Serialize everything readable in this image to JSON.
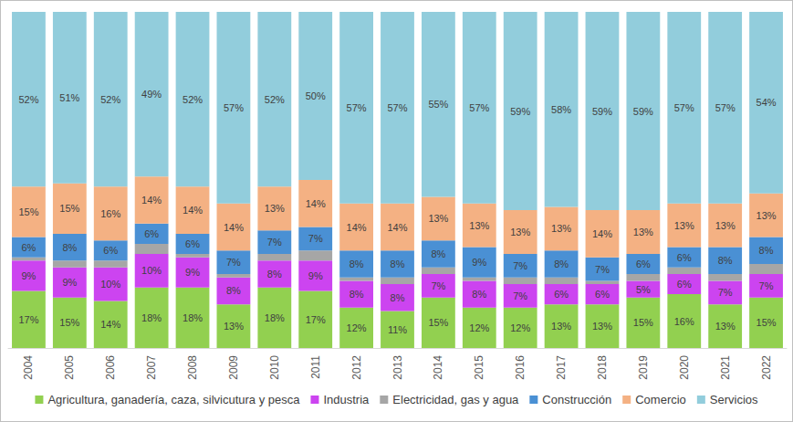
{
  "chart_data": {
    "type": "bar",
    "stacked": true,
    "data_labels": true,
    "tick_labels": "x",
    "grid": false,
    "legend": "bottom",
    "categories": [
      "2004",
      "2005",
      "2006",
      "2007",
      "2008",
      "2009",
      "2010",
      "2011",
      "2012",
      "2013",
      "2014",
      "2015",
      "2016",
      "2017",
      "2018",
      "2019",
      "2020",
      "2021",
      "2022"
    ],
    "ylim": [
      0,
      100
    ],
    "series": [
      {
        "name": "Agricultura, ganadería, caza, silvicutura y pesca",
        "color": "#92d050",
        "values": [
          17,
          15,
          14,
          18,
          18,
          13,
          18,
          17,
          12,
          11,
          15,
          12,
          12,
          13,
          13,
          15,
          16,
          13,
          15
        ],
        "value_labels": [
          "17%",
          "15%",
          "14%",
          "18%",
          "18%",
          "13%",
          "18%",
          "17%",
          "12%",
          "11%",
          "15%",
          "12%",
          "12%",
          "13%",
          "13%",
          "15%",
          "16%",
          "13%",
          "15%"
        ]
      },
      {
        "name": "Industria",
        "color": "#cc44f0",
        "values": [
          9,
          9,
          10,
          10,
          9,
          8,
          8,
          9,
          8,
          8,
          7,
          8,
          7,
          6,
          6,
          5,
          6,
          7,
          7
        ],
        "value_labels": [
          "9%",
          "9%",
          "10%",
          "10%",
          "9%",
          "8%",
          "8%",
          "9%",
          "8%",
          "8%",
          "7%",
          "8%",
          "7%",
          "6%",
          "6%",
          "5%",
          "6%",
          "7%",
          "7%"
        ]
      },
      {
        "name": "Electricidad, gas y agua",
        "color": "#a6a6a6",
        "values": [
          1,
          2,
          2,
          3,
          1,
          1,
          2,
          3,
          1,
          2,
          2,
          1,
          2,
          2,
          1,
          2,
          2,
          2,
          3
        ]
      },
      {
        "name": "Construcción",
        "color": "#4a90d4",
        "values": [
          6,
          8,
          6,
          6,
          6,
          7,
          7,
          7,
          8,
          8,
          8,
          9,
          7,
          8,
          7,
          6,
          6,
          8,
          8
        ],
        "value_labels": [
          "6%",
          "8%",
          "6%",
          "6%",
          "6%",
          "7%",
          "7%",
          "7%",
          "8%",
          "8%",
          "8%",
          "9%",
          "7%",
          "8%",
          "7%",
          "6%",
          "6%",
          "8%",
          "8%"
        ]
      },
      {
        "name": "Comercio",
        "color": "#f4b183",
        "values": [
          15,
          15,
          16,
          14,
          14,
          14,
          13,
          14,
          14,
          14,
          13,
          13,
          13,
          13,
          14,
          13,
          13,
          13,
          13
        ],
        "value_labels": [
          "15%",
          "15%",
          "16%",
          "14%",
          "14%",
          "14%",
          "13%",
          "14%",
          "14%",
          "14%",
          "13%",
          "13%",
          "13%",
          "13%",
          "14%",
          "13%",
          "13%",
          "13%",
          "13%"
        ]
      },
      {
        "name": "Servicios",
        "color": "#92cddc",
        "values": [
          52,
          51,
          52,
          49,
          52,
          57,
          52,
          50,
          57,
          57,
          55,
          57,
          59,
          58,
          59,
          59,
          57,
          57,
          54
        ],
        "value_labels": [
          "52%",
          "51%",
          "52%",
          "49%",
          "52%",
          "57%",
          "52%",
          "50%",
          "57%",
          "57%",
          "55%",
          "57%",
          "59%",
          "58%",
          "59%",
          "59%",
          "57%",
          "57%",
          "54%"
        ]
      }
    ]
  }
}
